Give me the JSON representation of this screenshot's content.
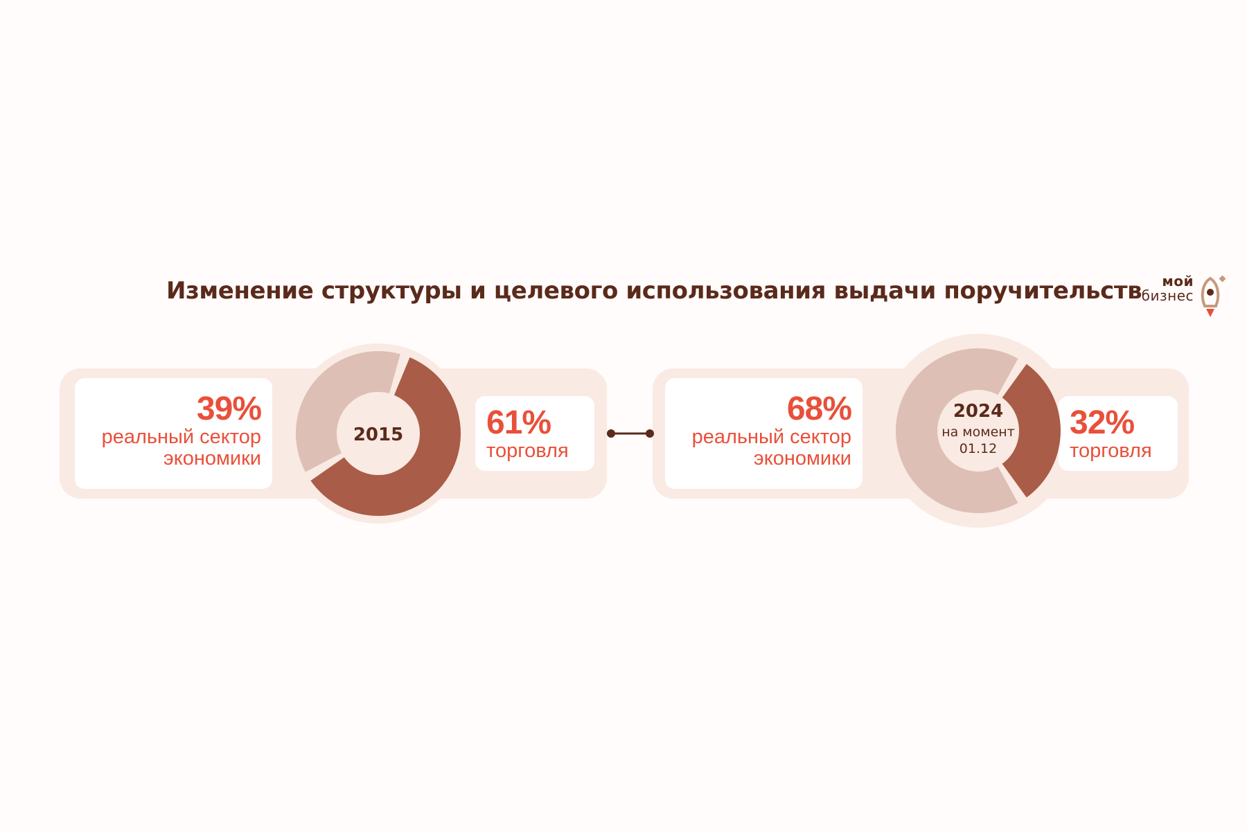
{
  "title": "Изменение структуры и целевого использования выдачи поручительств",
  "logo": {
    "line1": "мой",
    "line2": "бизнес"
  },
  "colors": {
    "dark_brown": "#5A2A1B",
    "accent_red": "#E8503A",
    "slice_dark": "#A95C47",
    "slice_light": "#DEBFB5",
    "panel_bg": "#F9EAE3"
  },
  "chart_data": [
    {
      "type": "pie",
      "title": "2015",
      "center_text": "2015",
      "slices": [
        {
          "label": "реальный сектор экономики",
          "value": 39,
          "display": "39%"
        },
        {
          "label": "торговля",
          "value": 61,
          "display": "61%"
        }
      ]
    },
    {
      "type": "pie",
      "title": "2024",
      "center_text": "2024",
      "center_subtext_1": "на момент",
      "center_subtext_2": "01.12",
      "slices": [
        {
          "label": "реальный сектор экономики",
          "value": 68,
          "display": "68%"
        },
        {
          "label": "торговля",
          "value": 32,
          "display": "32%"
        }
      ]
    }
  ],
  "cards": {
    "c2015_real": {
      "pct": "39%",
      "line1": "реальный сектор",
      "line2": "экономики"
    },
    "c2015_trade": {
      "pct": "61%",
      "line1": "торговля"
    },
    "c2024_real": {
      "pct": "68%",
      "line1": "реальный сектор",
      "line2": "экономики"
    },
    "c2024_trade": {
      "pct": "32%",
      "line1": "торговля"
    }
  }
}
